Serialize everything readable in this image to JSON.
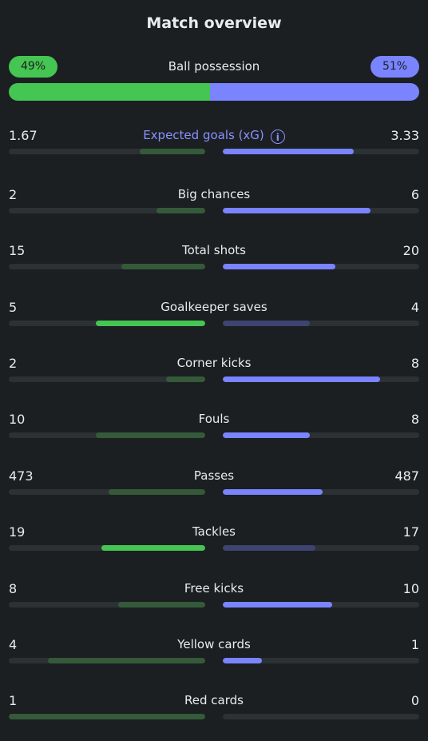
{
  "title": "Match overview",
  "possession": {
    "label": "Ball possession",
    "home": "49%",
    "away": "51%",
    "home_value": 49,
    "away_value": 51
  },
  "colors": {
    "home": "#45c552",
    "away": "#7a84ff",
    "home_dim": "#355a3a",
    "away_dim": "#3e4470",
    "track": "#2b3134"
  },
  "stats": [
    {
      "label": "Expected goals (xG)",
      "home": "1.67",
      "away": "3.33",
      "home_value": 1.67,
      "away_value": 3.33,
      "info": "i",
      "winner": "away"
    },
    {
      "label": "Big chances",
      "home": "2",
      "away": "6",
      "home_value": 2,
      "away_value": 6,
      "winner": "away"
    },
    {
      "label": "Total shots",
      "home": "15",
      "away": "20",
      "home_value": 15,
      "away_value": 20,
      "winner": "away"
    },
    {
      "label": "Goalkeeper saves",
      "home": "5",
      "away": "4",
      "home_value": 5,
      "away_value": 4,
      "winner": "home"
    },
    {
      "label": "Corner kicks",
      "home": "2",
      "away": "8",
      "home_value": 2,
      "away_value": 8,
      "winner": "away"
    },
    {
      "label": "Fouls",
      "home": "10",
      "away": "8",
      "home_value": 10,
      "away_value": 8,
      "winner": "away"
    },
    {
      "label": "Passes",
      "home": "473",
      "away": "487",
      "home_value": 473,
      "away_value": 487,
      "winner": "away"
    },
    {
      "label": "Tackles",
      "home": "19",
      "away": "17",
      "home_value": 19,
      "away_value": 17,
      "winner": "home"
    },
    {
      "label": "Free kicks",
      "home": "8",
      "away": "10",
      "home_value": 8,
      "away_value": 10,
      "winner": "away"
    },
    {
      "label": "Yellow cards",
      "home": "4",
      "away": "1",
      "home_value": 4,
      "away_value": 1,
      "winner": "away"
    },
    {
      "label": "Red cards",
      "home": "1",
      "away": "0",
      "home_value": 1,
      "away_value": 0,
      "winner": "away"
    }
  ]
}
